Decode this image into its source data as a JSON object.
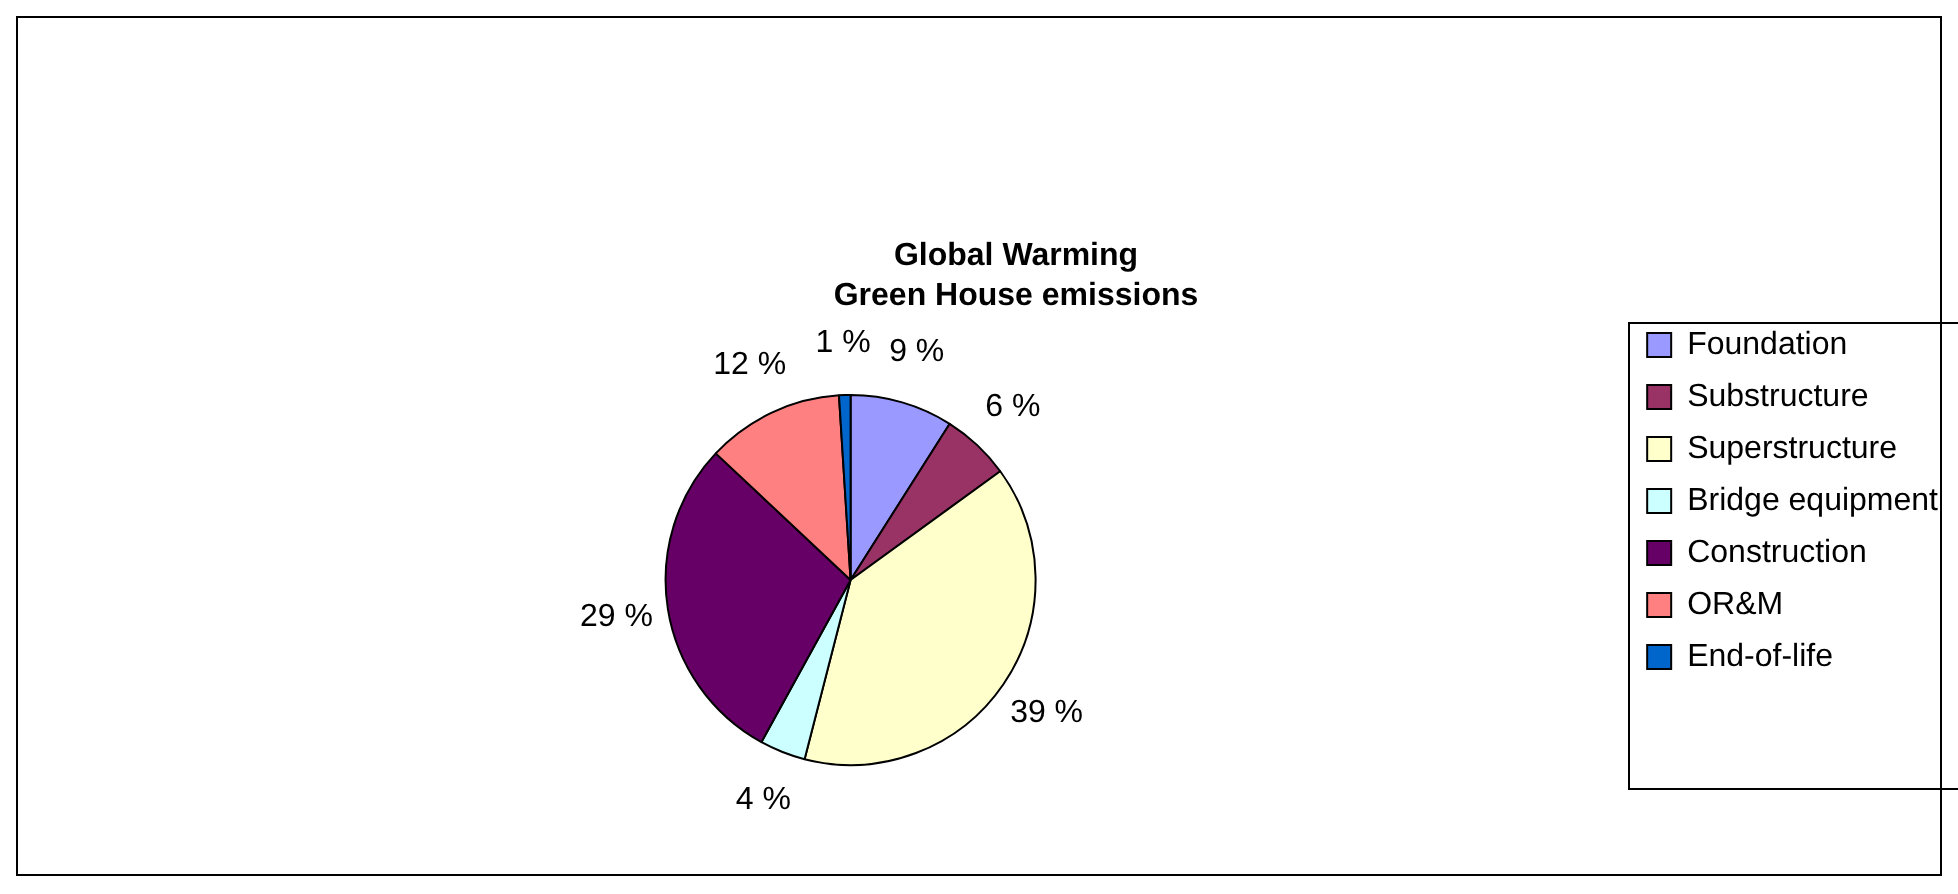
{
  "chart_data": {
    "type": "pie",
    "title": [
      "Global Warming",
      "Green House emissions"
    ],
    "categories": [
      "Foundation",
      "Substructure",
      "Superstructure",
      "Bridge equipment",
      "Construction",
      "OR&M",
      "End-of-life"
    ],
    "values": [
      9,
      6,
      39,
      4,
      29,
      12,
      1
    ],
    "value_labels": [
      "9 %",
      "6 %",
      "39 %",
      "4 %",
      "29 %",
      "12 %",
      "1 %"
    ],
    "colors": [
      "#9999ff",
      "#993366",
      "#ffffcc",
      "#ccffff",
      "#660066",
      "#ff8080",
      "#0066cc"
    ],
    "legend": "right"
  }
}
